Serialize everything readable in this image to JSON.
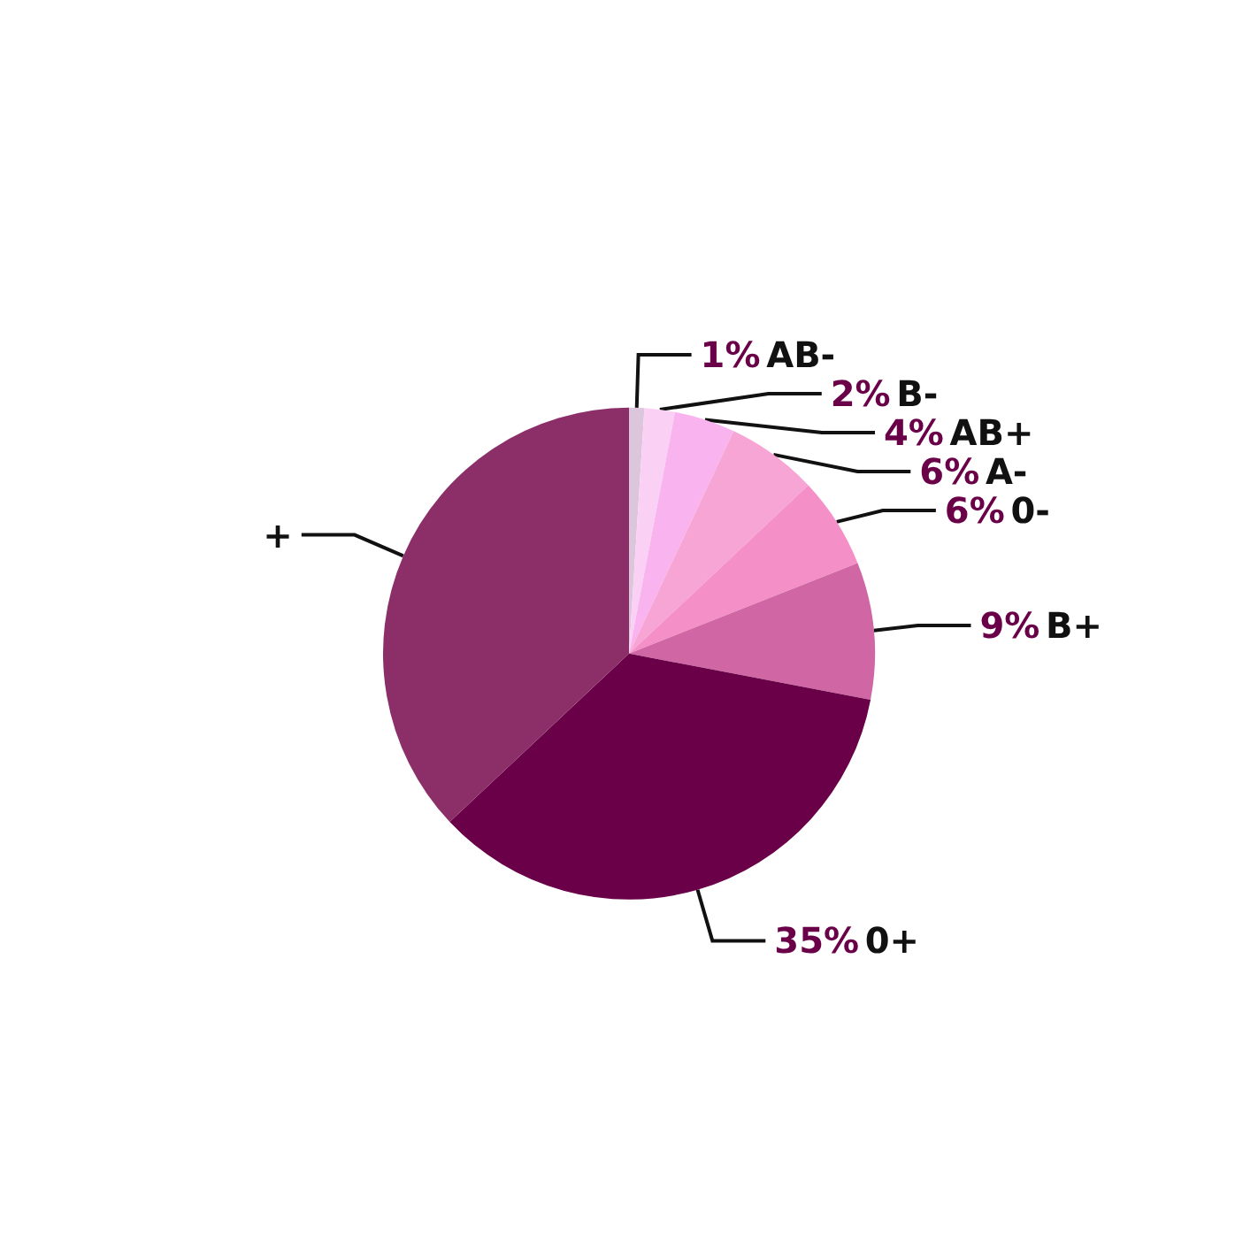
{
  "chart_data": {
    "type": "pie",
    "categories": [
      "AB-",
      "B-",
      "AB+",
      "A-",
      "0-",
      "B+",
      "0+",
      "+"
    ],
    "values": [
      1,
      2,
      4,
      6,
      6,
      9,
      35,
      37
    ],
    "value_labels": [
      "1%",
      "2%",
      "4%",
      "6%",
      "6%",
      "9%",
      "35%",
      null
    ],
    "colors": [
      "#dcc6dc",
      "#fbd0f5",
      "#f9b3ee",
      "#f6a5d4",
      "#f58fc8",
      "#d066a3",
      "#6a0048",
      "#8c2f69"
    ]
  }
}
